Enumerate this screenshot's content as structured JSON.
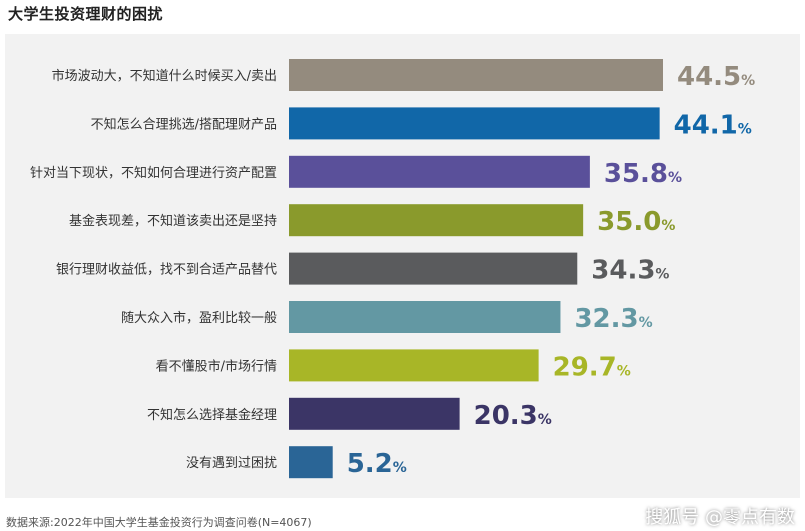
{
  "title": "大学生投资理财的困扰",
  "source": "数据来源:2022年中国大学生基金投资行为调查问卷(N=4067)",
  "watermark": "搜狐号 @零点有数",
  "chart_data": {
    "type": "bar",
    "orientation": "horizontal",
    "title": "大学生投资理财的困扰",
    "unit": "%",
    "xlim": [
      0,
      50
    ],
    "grid": false,
    "categories": [
      "市场波动大，不知道什么时候买入/卖出",
      "不知怎么合理挑选/搭配理财产品",
      "针对当下现状，不知如何合理进行资产配置",
      "基金表现差，不知道该卖出还是坚持",
      "银行理财收益低，找不到合适产品替代",
      "随大众入市，盈利比较一般",
      "看不懂股市/市场行情",
      "不知怎么选择基金经理",
      "没有遇到过困扰"
    ],
    "values": [
      44.5,
      44.1,
      35.8,
      35.0,
      34.3,
      32.3,
      29.7,
      20.3,
      5.2
    ],
    "value_labels": [
      "44.5",
      "44.1",
      "35.8",
      "35.0",
      "34.3",
      "32.3",
      "29.7",
      "20.3",
      "5.2"
    ],
    "colors": [
      "#948b7e",
      "#1167a8",
      "#5a509a",
      "#8a9a2c",
      "#5a5b5d",
      "#6398a3",
      "#a8b627",
      "#3b3566",
      "#2a6596"
    ]
  }
}
